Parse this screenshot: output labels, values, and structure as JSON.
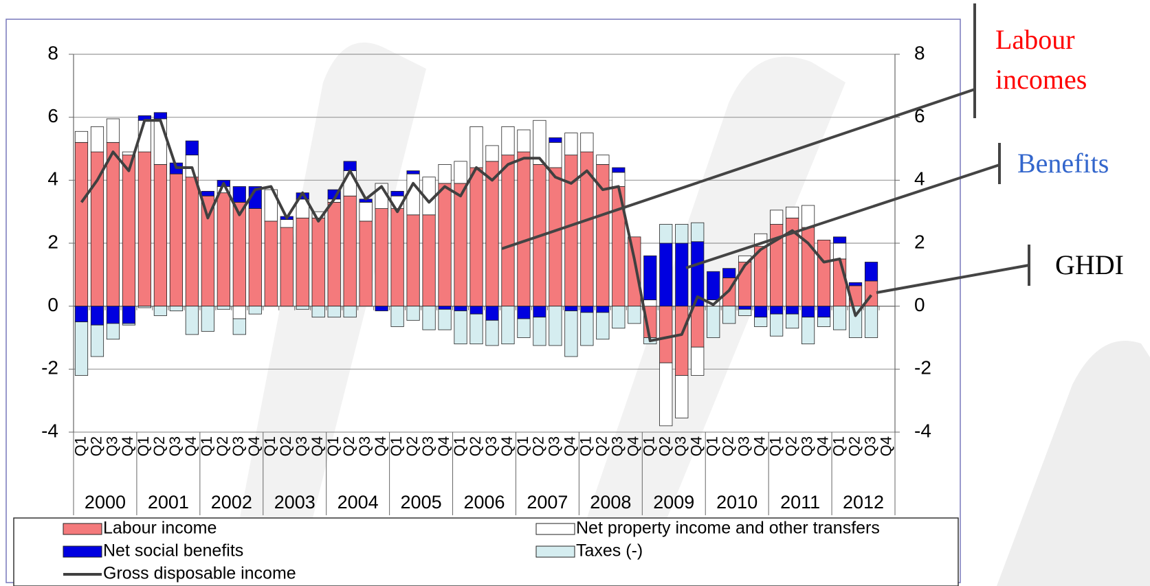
{
  "chart_data": {
    "type": "bar",
    "stacked": true,
    "grid": true,
    "categories": [
      "Q1",
      "Q2",
      "Q3",
      "Q4",
      "Q1",
      "Q2",
      "Q3",
      "Q4",
      "Q1",
      "Q2",
      "Q3",
      "Q4",
      "Q1",
      "Q2",
      "Q3",
      "Q4",
      "Q1",
      "Q2",
      "Q3",
      "Q4",
      "Q1",
      "Q2",
      "Q3",
      "Q4",
      "Q1",
      "Q2",
      "Q3",
      "Q4",
      "Q1",
      "Q2",
      "Q3",
      "Q4",
      "Q1",
      "Q2",
      "Q3",
      "Q4",
      "Q1",
      "Q2",
      "Q3",
      "Q4",
      "Q1",
      "Q2",
      "Q3",
      "Q4",
      "Q1",
      "Q2",
      "Q3",
      "Q4",
      "Q1",
      "Q2",
      "Q3",
      "Q4"
    ],
    "groups": [
      "2000",
      "2001",
      "2002",
      "2003",
      "2004",
      "2005",
      "2006",
      "2007",
      "2008",
      "2009",
      "2010",
      "2011",
      "2012"
    ],
    "ylim": [
      -4,
      8
    ],
    "yticks": [
      -4,
      -2,
      0,
      2,
      4,
      6,
      8
    ],
    "y2lim": [
      -4,
      8
    ],
    "y2ticks": [
      -4,
      -2,
      0,
      2,
      4,
      6,
      8
    ],
    "series": [
      {
        "name": "Labour income",
        "color": "#f47a7c",
        "values": [
          5.2,
          4.9,
          5.2,
          4.8,
          4.9,
          4.5,
          4.2,
          4.1,
          3.5,
          3.6,
          3.3,
          3.1,
          2.7,
          2.5,
          2.8,
          2.8,
          3.3,
          3.5,
          2.7,
          3.1,
          3.1,
          2.9,
          2.9,
          3.9,
          3.9,
          4.4,
          4.6,
          4.8,
          4.9,
          4.5,
          4.4,
          4.8,
          4.9,
          4.5,
          3.8,
          2.2,
          -1.0,
          -1.8,
          -2.2,
          -1.3,
          0.0,
          0.9,
          1.4,
          1.9,
          2.6,
          2.8,
          2.5,
          2.1,
          1.5,
          0.65,
          0.8,
          null
        ]
      },
      {
        "name": "Net property income and other transfers",
        "color": "#ffffff",
        "values": [
          0.35,
          0.8,
          0.75,
          0.1,
          1.0,
          1.45,
          0.0,
          0.7,
          0.0,
          0.2,
          -0.4,
          0.0,
          1.0,
          0.25,
          0.6,
          0.2,
          0.1,
          0.8,
          0.6,
          0.8,
          0.4,
          1.3,
          1.2,
          0.6,
          0.7,
          1.3,
          0.5,
          0.9,
          0.7,
          1.4,
          0.8,
          0.7,
          0.6,
          0.3,
          0.45,
          0.0,
          0.2,
          -2.0,
          -1.35,
          -0.9,
          0.2,
          0.0,
          0.2,
          0.4,
          0.45,
          0.35,
          0.7,
          0.0,
          0.5,
          0.0,
          0.0,
          null
        ]
      },
      {
        "name": "Net social benefits",
        "color": "#0000e0",
        "values": [
          -0.5,
          -0.6,
          -0.55,
          -0.55,
          0.15,
          0.2,
          0.35,
          0.45,
          0.15,
          0.2,
          0.5,
          0.7,
          0.0,
          0.1,
          0.2,
          0.0,
          0.3,
          0.3,
          0.1,
          -0.15,
          0.15,
          0.1,
          0.0,
          -0.1,
          -0.15,
          -0.25,
          -0.45,
          0.0,
          -0.4,
          -0.35,
          0.15,
          -0.15,
          -0.2,
          -0.2,
          0.15,
          0.0,
          1.4,
          2.0,
          2.0,
          2.05,
          0.9,
          0.3,
          -0.1,
          -0.35,
          -0.25,
          -0.25,
          -0.35,
          -0.35,
          0.2,
          0.1,
          0.6,
          null
        ]
      },
      {
        "name": "Taxes (-)",
        "color": "#d5edf0",
        "values": [
          -1.7,
          -1.0,
          -0.5,
          -0.05,
          -0.05,
          -0.3,
          -0.15,
          -0.9,
          -0.8,
          -0.1,
          -0.5,
          -0.25,
          0.0,
          0.0,
          -0.1,
          -0.35,
          -0.35,
          -0.35,
          0.0,
          0.0,
          -0.65,
          -0.45,
          -0.75,
          -0.65,
          -1.05,
          -0.95,
          -0.8,
          -1.2,
          -0.6,
          -0.9,
          -1.25,
          -1.45,
          -1.05,
          -0.85,
          -0.7,
          -0.55,
          -0.2,
          0.6,
          0.6,
          0.6,
          -1.0,
          -0.55,
          -0.2,
          -0.3,
          -0.7,
          -0.45,
          -0.85,
          -0.3,
          -0.75,
          -1.0,
          -1.0,
          null
        ]
      },
      {
        "name": "Gross disposable income",
        "type": "line",
        "color": "#404040",
        "values": [
          3.3,
          4.0,
          4.9,
          4.3,
          5.9,
          5.9,
          4.4,
          4.4,
          2.8,
          3.9,
          2.9,
          3.7,
          3.8,
          2.8,
          3.6,
          2.7,
          3.4,
          4.3,
          3.4,
          3.8,
          3.0,
          3.9,
          3.3,
          3.8,
          3.5,
          4.4,
          4.0,
          4.5,
          4.7,
          4.7,
          4.1,
          3.9,
          4.3,
          3.7,
          3.8,
          1.5,
          -1.1,
          -1.0,
          -0.9,
          0.3,
          0.05,
          0.5,
          1.3,
          1.8,
          2.1,
          2.4,
          2.0,
          1.4,
          1.5,
          -0.3,
          0.35,
          null
        ]
      }
    ],
    "annotations": [
      {
        "lines": [
          "Labour",
          "incomes"
        ],
        "color": "#ff0000"
      },
      {
        "lines": [
          "Benefits"
        ],
        "color": "#3366cc"
      },
      {
        "lines": [
          "GHDI"
        ],
        "color": "#000000"
      }
    ]
  }
}
